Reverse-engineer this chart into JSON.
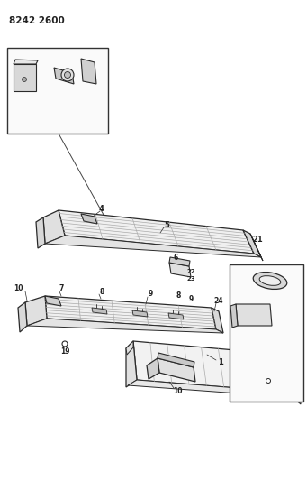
{
  "title": "8242 2600",
  "bg_color": "#ffffff",
  "line_color": "#2a2a2a",
  "fig_width": 3.41,
  "fig_height": 5.33,
  "dpi": 100
}
